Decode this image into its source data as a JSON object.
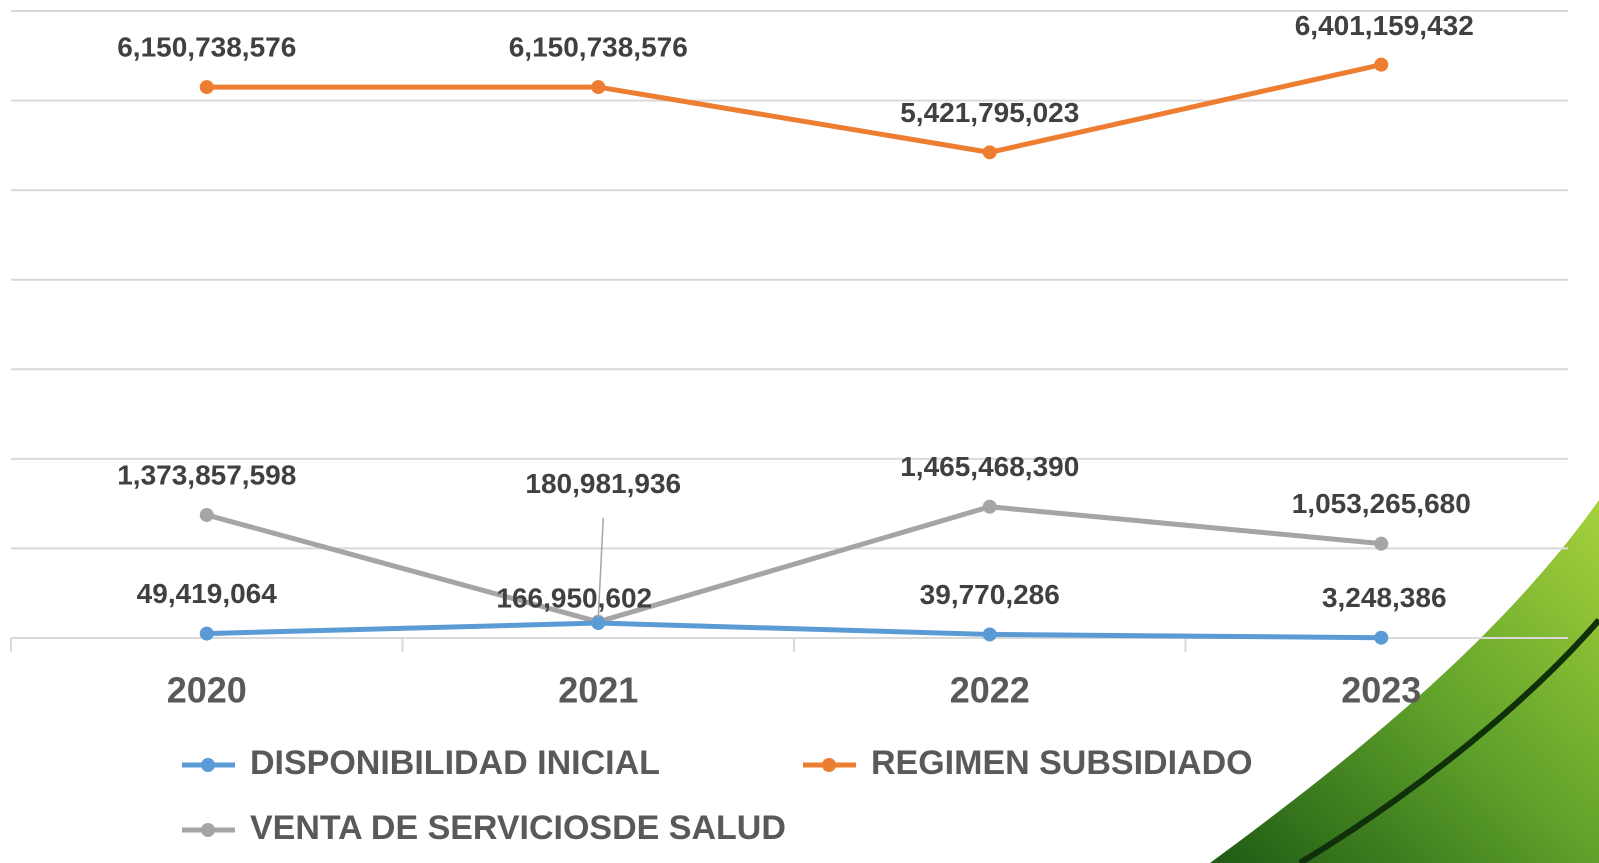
{
  "chart_data": {
    "type": "line",
    "categories": [
      "2020",
      "2021",
      "2022",
      "2023"
    ],
    "series": [
      {
        "name": "DISPONIBILIDAD INICIAL",
        "color": "#5b9bd5",
        "values": [
          49419064,
          166950602,
          39770286,
          3248386
        ],
        "value_labels": [
          "49,419,064",
          "166,950,602",
          "39,770,286",
          "3,248,386"
        ]
      },
      {
        "name": "REGIMEN SUBSIDIADO",
        "color": "#ed7d31",
        "values": [
          6150738576,
          6150738576,
          5421795023,
          6401159432
        ],
        "value_labels": [
          "6,150,738,576",
          "6,150,738,576",
          "5,421,795,023",
          "6,401,159,432"
        ]
      },
      {
        "name": "VENTA DE SERVICIOSDE SALUD",
        "color": "#a5a5a5",
        "values": [
          1373857598,
          180981936,
          1465468390,
          1053265680
        ],
        "value_labels": [
          "1,373,857,598",
          "180,981,936",
          "1,465,468,390",
          "1,053,265,680"
        ]
      }
    ],
    "ylim": [
      0,
      7000000000
    ],
    "yticks": [
      0,
      1000000000,
      2000000000,
      3000000000,
      4000000000,
      5000000000,
      6000000000,
      7000000000
    ],
    "grid": true
  }
}
